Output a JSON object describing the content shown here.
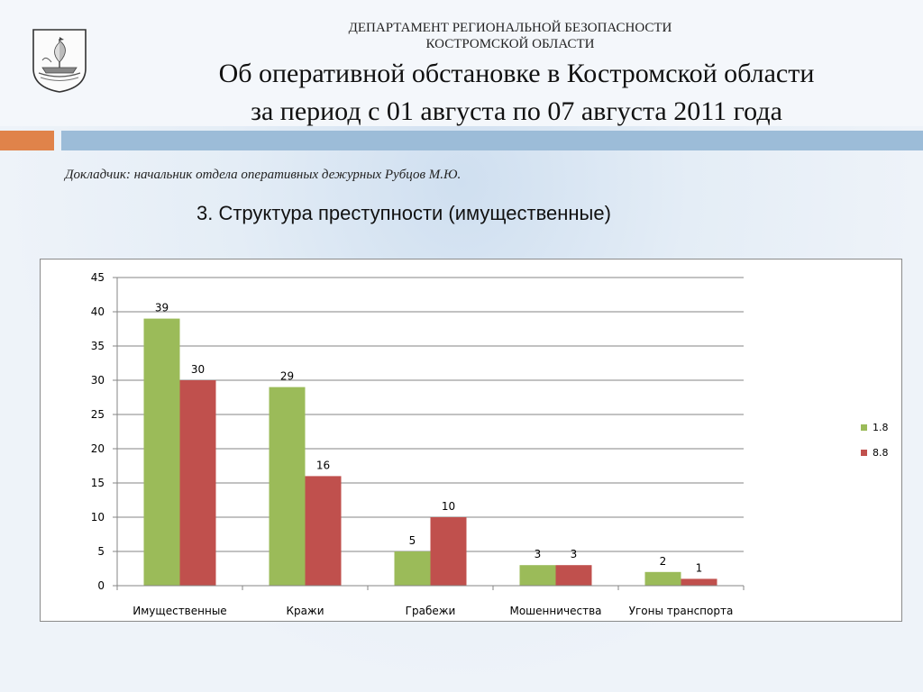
{
  "header": {
    "dept_line1": "ДЕПАРТАМЕНТ РЕГИОНАЛЬНОЙ БЕЗОПАСНОСТИ",
    "dept_line2": "КОСТРОМСКОЙ ОБЛАСТИ",
    "title_line1": "Об оперативной обстановке в Костромской области",
    "title_line2": "за период с 01 августа по 07 августа 2011 года"
  },
  "reporter": "Докладчик: начальник отдела оперативных дежурных Рубцов М.Ю.",
  "subtitle": "3. Структура преступности (имущественные)",
  "colors": {
    "series1": "#9bbb59",
    "series2": "#c0504d",
    "accent_orange": "#e0834a",
    "accent_blue": "#9cbcd8"
  },
  "chart_data": {
    "type": "bar",
    "categories": [
      "Имущественные",
      "Кражи",
      "Грабежи",
      "Мошенничества",
      "Угоны транспорта"
    ],
    "series": [
      {
        "name": "1.8",
        "values": [
          39,
          29,
          5,
          3,
          2
        ],
        "color": "#9bbb59"
      },
      {
        "name": "8.8",
        "values": [
          30,
          16,
          10,
          3,
          1
        ],
        "color": "#c0504d"
      }
    ],
    "ylim": [
      0,
      45
    ],
    "yticks": [
      0,
      5,
      10,
      15,
      20,
      25,
      30,
      35,
      40,
      45
    ],
    "grid": true,
    "legend": "right",
    "data_labels": true
  }
}
